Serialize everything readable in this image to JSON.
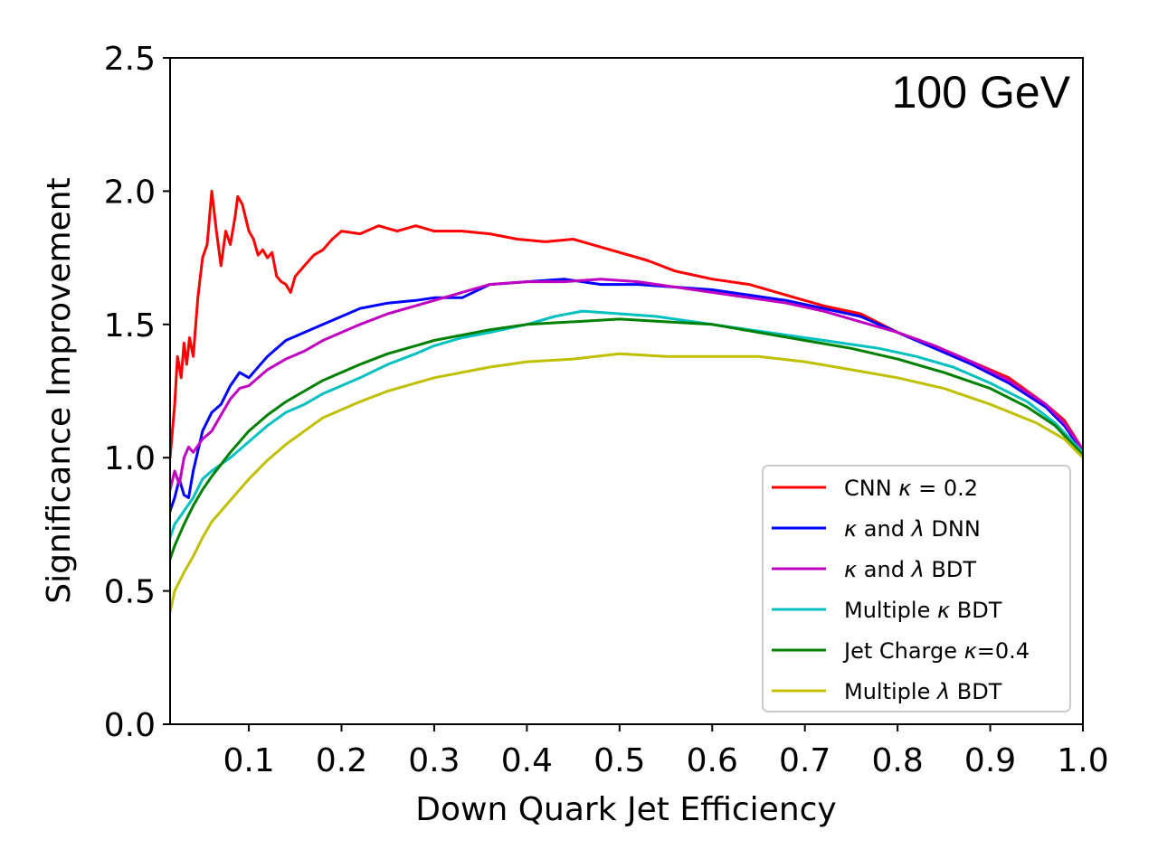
{
  "chart_data": {
    "type": "line",
    "title": "",
    "annotation": "100 GeV",
    "xlabel": "Down Quark Jet Efficiency",
    "ylabel": "Significance Improvement",
    "xlim": [
      0.015,
      1.0
    ],
    "ylim": [
      0.0,
      2.5
    ],
    "xticks": [
      0.1,
      0.2,
      0.3,
      0.4,
      0.5,
      0.6,
      0.7,
      0.8,
      0.9,
      1.0
    ],
    "xtick_labels": [
      "0.1",
      "0.2",
      "0.3",
      "0.4",
      "0.5",
      "0.6",
      "0.7",
      "0.8",
      "0.9",
      "1.0"
    ],
    "yticks": [
      0.0,
      0.5,
      1.0,
      1.5,
      2.0,
      2.5
    ],
    "ytick_labels": [
      "0.0",
      "0.5",
      "1.0",
      "1.5",
      "2.0",
      "2.5"
    ],
    "grid": false,
    "legend_position": "lower-right",
    "series": [
      {
        "name": "CNN κ = 0.2",
        "legend_pre": "CNN ",
        "legend_sym1": "κ",
        "legend_mid": " = 0.2",
        "legend_sym2": "",
        "legend_post": "",
        "color": "#ff0000",
        "points": [
          [
            0.015,
            1.0
          ],
          [
            0.02,
            1.2
          ],
          [
            0.023,
            1.38
          ],
          [
            0.027,
            1.3
          ],
          [
            0.03,
            1.43
          ],
          [
            0.033,
            1.35
          ],
          [
            0.036,
            1.45
          ],
          [
            0.04,
            1.38
          ],
          [
            0.045,
            1.6
          ],
          [
            0.05,
            1.75
          ],
          [
            0.055,
            1.8
          ],
          [
            0.06,
            2.0
          ],
          [
            0.065,
            1.85
          ],
          [
            0.07,
            1.72
          ],
          [
            0.075,
            1.85
          ],
          [
            0.08,
            1.8
          ],
          [
            0.085,
            1.9
          ],
          [
            0.088,
            1.98
          ],
          [
            0.093,
            1.95
          ],
          [
            0.1,
            1.85
          ],
          [
            0.105,
            1.82
          ],
          [
            0.11,
            1.76
          ],
          [
            0.115,
            1.78
          ],
          [
            0.12,
            1.75
          ],
          [
            0.125,
            1.77
          ],
          [
            0.13,
            1.68
          ],
          [
            0.135,
            1.66
          ],
          [
            0.14,
            1.65
          ],
          [
            0.145,
            1.62
          ],
          [
            0.15,
            1.68
          ],
          [
            0.16,
            1.72
          ],
          [
            0.17,
            1.76
          ],
          [
            0.18,
            1.78
          ],
          [
            0.19,
            1.82
          ],
          [
            0.2,
            1.85
          ],
          [
            0.22,
            1.84
          ],
          [
            0.24,
            1.87
          ],
          [
            0.26,
            1.85
          ],
          [
            0.28,
            1.87
          ],
          [
            0.3,
            1.85
          ],
          [
            0.33,
            1.85
          ],
          [
            0.36,
            1.84
          ],
          [
            0.39,
            1.82
          ],
          [
            0.42,
            1.81
          ],
          [
            0.45,
            1.82
          ],
          [
            0.48,
            1.79
          ],
          [
            0.5,
            1.77
          ],
          [
            0.53,
            1.74
          ],
          [
            0.56,
            1.7
          ],
          [
            0.6,
            1.67
          ],
          [
            0.64,
            1.65
          ],
          [
            0.68,
            1.61
          ],
          [
            0.72,
            1.57
          ],
          [
            0.76,
            1.54
          ],
          [
            0.8,
            1.47
          ],
          [
            0.84,
            1.42
          ],
          [
            0.88,
            1.36
          ],
          [
            0.92,
            1.3
          ],
          [
            0.96,
            1.2
          ],
          [
            0.98,
            1.14
          ],
          [
            1.0,
            1.03
          ]
        ]
      },
      {
        "name": "κ and λ DNN",
        "legend_pre": "",
        "legend_sym1": "κ",
        "legend_mid": " and ",
        "legend_sym2": "λ",
        "legend_post": " DNN",
        "color": "#0000ff",
        "points": [
          [
            0.015,
            0.8
          ],
          [
            0.02,
            0.85
          ],
          [
            0.025,
            0.92
          ],
          [
            0.03,
            0.86
          ],
          [
            0.035,
            0.85
          ],
          [
            0.04,
            0.95
          ],
          [
            0.05,
            1.1
          ],
          [
            0.06,
            1.17
          ],
          [
            0.07,
            1.2
          ],
          [
            0.08,
            1.27
          ],
          [
            0.09,
            1.32
          ],
          [
            0.1,
            1.3
          ],
          [
            0.12,
            1.38
          ],
          [
            0.14,
            1.44
          ],
          [
            0.16,
            1.47
          ],
          [
            0.18,
            1.5
          ],
          [
            0.2,
            1.53
          ],
          [
            0.22,
            1.56
          ],
          [
            0.25,
            1.58
          ],
          [
            0.28,
            1.59
          ],
          [
            0.3,
            1.6
          ],
          [
            0.33,
            1.6
          ],
          [
            0.36,
            1.65
          ],
          [
            0.4,
            1.66
          ],
          [
            0.44,
            1.67
          ],
          [
            0.48,
            1.65
          ],
          [
            0.52,
            1.65
          ],
          [
            0.56,
            1.64
          ],
          [
            0.6,
            1.63
          ],
          [
            0.64,
            1.61
          ],
          [
            0.68,
            1.59
          ],
          [
            0.72,
            1.56
          ],
          [
            0.76,
            1.53
          ],
          [
            0.8,
            1.47
          ],
          [
            0.84,
            1.41
          ],
          [
            0.88,
            1.35
          ],
          [
            0.92,
            1.28
          ],
          [
            0.96,
            1.19
          ],
          [
            0.98,
            1.12
          ],
          [
            1.0,
            1.02
          ]
        ]
      },
      {
        "name": "κ and λ BDT",
        "legend_pre": "",
        "legend_sym1": "κ",
        "legend_mid": " and ",
        "legend_sym2": "λ",
        "legend_post": " BDT",
        "color": "#c000c0",
        "points": [
          [
            0.015,
            0.88
          ],
          [
            0.02,
            0.95
          ],
          [
            0.025,
            0.9
          ],
          [
            0.03,
            1.0
          ],
          [
            0.035,
            1.04
          ],
          [
            0.04,
            1.02
          ],
          [
            0.05,
            1.07
          ],
          [
            0.06,
            1.1
          ],
          [
            0.07,
            1.16
          ],
          [
            0.08,
            1.22
          ],
          [
            0.09,
            1.26
          ],
          [
            0.1,
            1.27
          ],
          [
            0.12,
            1.33
          ],
          [
            0.14,
            1.37
          ],
          [
            0.16,
            1.4
          ],
          [
            0.18,
            1.44
          ],
          [
            0.2,
            1.47
          ],
          [
            0.22,
            1.5
          ],
          [
            0.25,
            1.54
          ],
          [
            0.28,
            1.57
          ],
          [
            0.3,
            1.59
          ],
          [
            0.33,
            1.62
          ],
          [
            0.36,
            1.65
          ],
          [
            0.4,
            1.66
          ],
          [
            0.44,
            1.66
          ],
          [
            0.48,
            1.67
          ],
          [
            0.52,
            1.66
          ],
          [
            0.56,
            1.64
          ],
          [
            0.6,
            1.62
          ],
          [
            0.64,
            1.6
          ],
          [
            0.68,
            1.58
          ],
          [
            0.72,
            1.55
          ],
          [
            0.76,
            1.51
          ],
          [
            0.8,
            1.47
          ],
          [
            0.84,
            1.42
          ],
          [
            0.88,
            1.36
          ],
          [
            0.92,
            1.29
          ],
          [
            0.96,
            1.2
          ],
          [
            0.98,
            1.13
          ],
          [
            1.0,
            1.03
          ]
        ]
      },
      {
        "name": "Multiple κ BDT",
        "legend_pre": "Multiple ",
        "legend_sym1": "κ",
        "legend_mid": " BDT",
        "legend_sym2": "",
        "legend_post": "",
        "color": "#00c0c0",
        "points": [
          [
            0.015,
            0.7
          ],
          [
            0.02,
            0.75
          ],
          [
            0.03,
            0.8
          ],
          [
            0.04,
            0.85
          ],
          [
            0.05,
            0.92
          ],
          [
            0.06,
            0.95
          ],
          [
            0.08,
            1.0
          ],
          [
            0.1,
            1.06
          ],
          [
            0.12,
            1.12
          ],
          [
            0.14,
            1.17
          ],
          [
            0.16,
            1.2
          ],
          [
            0.18,
            1.24
          ],
          [
            0.2,
            1.27
          ],
          [
            0.22,
            1.3
          ],
          [
            0.25,
            1.35
          ],
          [
            0.28,
            1.39
          ],
          [
            0.3,
            1.42
          ],
          [
            0.33,
            1.45
          ],
          [
            0.36,
            1.47
          ],
          [
            0.4,
            1.5
          ],
          [
            0.43,
            1.53
          ],
          [
            0.46,
            1.55
          ],
          [
            0.5,
            1.54
          ],
          [
            0.54,
            1.53
          ],
          [
            0.58,
            1.51
          ],
          [
            0.62,
            1.49
          ],
          [
            0.66,
            1.47
          ],
          [
            0.7,
            1.45
          ],
          [
            0.74,
            1.43
          ],
          [
            0.78,
            1.41
          ],
          [
            0.82,
            1.38
          ],
          [
            0.86,
            1.34
          ],
          [
            0.9,
            1.28
          ],
          [
            0.94,
            1.21
          ],
          [
            0.97,
            1.13
          ],
          [
            1.0,
            1.02
          ]
        ]
      },
      {
        "name": "Jet Charge κ=0.4",
        "legend_pre": "Jet Charge ",
        "legend_sym1": "κ",
        "legend_mid": "=0.4",
        "legend_sym2": "",
        "legend_post": "",
        "color": "#008000",
        "points": [
          [
            0.015,
            0.62
          ],
          [
            0.02,
            0.67
          ],
          [
            0.03,
            0.75
          ],
          [
            0.04,
            0.82
          ],
          [
            0.05,
            0.88
          ],
          [
            0.06,
            0.93
          ],
          [
            0.08,
            1.02
          ],
          [
            0.1,
            1.1
          ],
          [
            0.12,
            1.16
          ],
          [
            0.14,
            1.21
          ],
          [
            0.16,
            1.25
          ],
          [
            0.18,
            1.29
          ],
          [
            0.2,
            1.32
          ],
          [
            0.22,
            1.35
          ],
          [
            0.25,
            1.39
          ],
          [
            0.28,
            1.42
          ],
          [
            0.3,
            1.44
          ],
          [
            0.33,
            1.46
          ],
          [
            0.36,
            1.48
          ],
          [
            0.4,
            1.5
          ],
          [
            0.45,
            1.51
          ],
          [
            0.5,
            1.52
          ],
          [
            0.55,
            1.51
          ],
          [
            0.6,
            1.5
          ],
          [
            0.65,
            1.47
          ],
          [
            0.7,
            1.44
          ],
          [
            0.75,
            1.41
          ],
          [
            0.8,
            1.37
          ],
          [
            0.85,
            1.32
          ],
          [
            0.9,
            1.26
          ],
          [
            0.94,
            1.19
          ],
          [
            0.97,
            1.12
          ],
          [
            1.0,
            1.01
          ]
        ]
      },
      {
        "name": "Multiple λ BDT",
        "legend_pre": "Multiple ",
        "legend_sym1": "λ",
        "legend_mid": " BDT",
        "legend_sym2": "",
        "legend_post": "",
        "color": "#c0c000",
        "points": [
          [
            0.015,
            0.42
          ],
          [
            0.02,
            0.5
          ],
          [
            0.03,
            0.57
          ],
          [
            0.04,
            0.63
          ],
          [
            0.05,
            0.7
          ],
          [
            0.06,
            0.76
          ],
          [
            0.08,
            0.84
          ],
          [
            0.1,
            0.92
          ],
          [
            0.12,
            0.99
          ],
          [
            0.14,
            1.05
          ],
          [
            0.16,
            1.1
          ],
          [
            0.18,
            1.15
          ],
          [
            0.2,
            1.18
          ],
          [
            0.22,
            1.21
          ],
          [
            0.25,
            1.25
          ],
          [
            0.28,
            1.28
          ],
          [
            0.3,
            1.3
          ],
          [
            0.33,
            1.32
          ],
          [
            0.36,
            1.34
          ],
          [
            0.4,
            1.36
          ],
          [
            0.45,
            1.37
          ],
          [
            0.5,
            1.39
          ],
          [
            0.55,
            1.38
          ],
          [
            0.6,
            1.38
          ],
          [
            0.65,
            1.38
          ],
          [
            0.7,
            1.36
          ],
          [
            0.75,
            1.33
          ],
          [
            0.8,
            1.3
          ],
          [
            0.85,
            1.26
          ],
          [
            0.9,
            1.2
          ],
          [
            0.95,
            1.13
          ],
          [
            0.98,
            1.07
          ],
          [
            1.0,
            1.0
          ]
        ]
      }
    ]
  }
}
